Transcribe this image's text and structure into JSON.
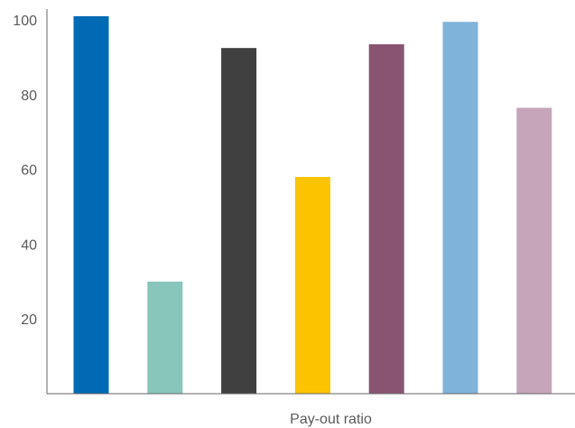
{
  "chart_data": {
    "type": "bar",
    "title": "",
    "xlabel": "Pay-out ratio",
    "ylabel": "",
    "ylim": [
      0,
      101
    ],
    "yticks": [
      20,
      40,
      60,
      80,
      100
    ],
    "grid": false,
    "legend": "none",
    "series": [
      {
        "values": [
          101,
          30,
          92.5,
          58,
          93.5,
          99.5,
          76.5
        ],
        "colors": [
          "#006ab4",
          "#88c6bb",
          "#404040",
          "#fcc400",
          "#895472",
          "#7fb3da",
          "#c6a5ba"
        ]
      }
    ]
  }
}
